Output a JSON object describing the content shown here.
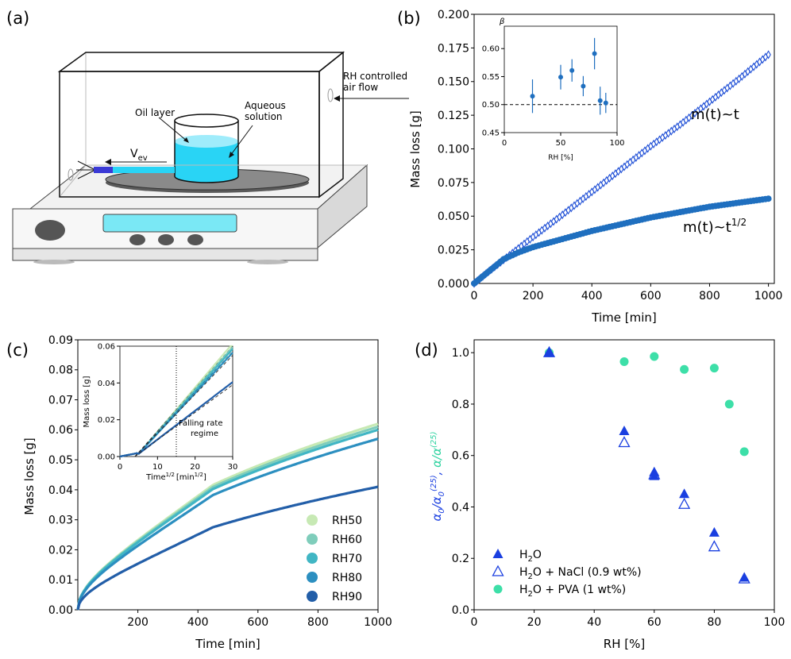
{
  "figure": {
    "panel_labels": [
      "(a)",
      "(b)",
      "(c)",
      "(d)"
    ]
  },
  "schematic": {
    "rh_label_line1": "RH controlled",
    "rh_label_line2": "air flow",
    "oil_label": "Oil layer",
    "aqueous_label_line1": "Aqueous",
    "aqueous_label_line2": "solution",
    "vev_label": "V",
    "vev_sub": "ev",
    "colors": {
      "liquid": "#29d4f5",
      "balance_display": "#7ae8f5",
      "pan": "#808080"
    }
  },
  "chart_data": [
    {
      "panel": "(b)",
      "type": "scatter",
      "xlabel": "Time [min]",
      "ylabel": "Mass loss [g]",
      "xlim": [
        0,
        1020
      ],
      "ylim": [
        0,
        0.2
      ],
      "xticks": [
        "0",
        "200",
        "400",
        "600",
        "800",
        "1000"
      ],
      "yticks": [
        "0.000",
        "0.025",
        "0.050",
        "0.075",
        "0.100",
        "0.125",
        "0.150",
        "0.175",
        "0.200"
      ],
      "annotations": [
        "m(t)~t",
        "m(t)~t"
      ],
      "annotation_sup": "1/2",
      "series": [
        {
          "marker": "open-diamond",
          "color": "#1f4fd6",
          "x": [
            0,
            50,
            100,
            200,
            300,
            400,
            500,
            600,
            700,
            800,
            900,
            1000
          ],
          "y": [
            0,
            0.009,
            0.0175,
            0.0345,
            0.051,
            0.068,
            0.085,
            0.102,
            0.118,
            0.135,
            0.152,
            0.17
          ]
        },
        {
          "marker": "filled-circle",
          "color": "#1f6fbf",
          "x": [
            0,
            50,
            100,
            150,
            200,
            300,
            400,
            500,
            600,
            700,
            800,
            900,
            1000
          ],
          "y": [
            0,
            0.009,
            0.018,
            0.023,
            0.027,
            0.033,
            0.039,
            0.044,
            0.049,
            0.053,
            0.057,
            0.06,
            0.063
          ]
        }
      ],
      "inset": {
        "type": "scatter",
        "title": "β",
        "xlabel": "RH [%]",
        "xlim": [
          0,
          100
        ],
        "ylim": [
          0.45,
          0.64
        ],
        "xticks": [
          "0",
          "50",
          "100"
        ],
        "yticks": [
          "0.45",
          "0.50",
          "0.55",
          "0.60"
        ],
        "reference_y": 0.5,
        "color": "#1f6fbf",
        "x": [
          25,
          50,
          60,
          70,
          80,
          85,
          90
        ],
        "y": [
          0.515,
          0.549,
          0.561,
          0.533,
          0.591,
          0.507,
          0.503
        ],
        "err": [
          0.03,
          0.022,
          0.02,
          0.018,
          0.028,
          0.025,
          0.018
        ]
      }
    },
    {
      "panel": "(c)",
      "type": "line",
      "xlabel": "Time [min]",
      "ylabel": "Mass loss [g]",
      "xlim": [
        0,
        1000
      ],
      "ylim": [
        0,
        0.09
      ],
      "xticks": [
        "200",
        "400",
        "600",
        "800",
        "1000"
      ],
      "yticks": [
        "0.00",
        "0.01",
        "0.02",
        "0.03",
        "0.04",
        "0.05",
        "0.06",
        "0.07",
        "0.08",
        "0.09"
      ],
      "legend_position": "lower right",
      "series": [
        {
          "name": "RH50",
          "color": "#c7e9b4",
          "final": 0.062
        },
        {
          "name": "RH60",
          "color": "#7fcdbb",
          "final": 0.061
        },
        {
          "name": "RH70",
          "color": "#41b6c4",
          "final": 0.06
        },
        {
          "name": "RH80",
          "color": "#2c8fc0",
          "final": 0.057
        },
        {
          "name": "RH90",
          "color": "#225ea8",
          "final": 0.041
        }
      ],
      "inset": {
        "type": "line",
        "xlabel": "Time",
        "xlabel_sup": "1/2",
        "xlabel_unit": "[min",
        "xlabel_unit_sup": "1/2",
        "xlabel_unit_close": "]",
        "ylabel": "Mass loss [g]",
        "xlim": [
          0,
          30
        ],
        "ylim": [
          0,
          0.06
        ],
        "xticks": [
          "0",
          "10",
          "20",
          "30"
        ],
        "yticks": [
          "0.00",
          "0.02",
          "0.04",
          "0.06"
        ],
        "vline_x": 15,
        "annotation_line1": "Falling rate",
        "annotation_line2": "regime",
        "lines": [
          {
            "color": "#c7e9b4",
            "end_y": 0.06
          },
          {
            "color": "#7fcdbb",
            "end_y": 0.058
          },
          {
            "color": "#41b6c4",
            "end_y": 0.057
          },
          {
            "color": "#2c8fc0",
            "end_y": 0.055
          },
          {
            "color": "#225ea8",
            "end_y": 0.039
          }
        ]
      }
    },
    {
      "panel": "(d)",
      "type": "scatter",
      "xlabel": "RH [%]",
      "ylabel_parts": [
        "α",
        "0",
        "/α",
        "0",
        "(25)",
        ", ",
        "α/α",
        "(25)"
      ],
      "ylabel_colors": {
        "first": "#1a3fe0",
        "second": "#2ed3a0"
      },
      "xlim": [
        0,
        100
      ],
      "ylim": [
        0,
        1.05
      ],
      "xticks": [
        "0",
        "20",
        "40",
        "60",
        "80",
        "100"
      ],
      "yticks": [
        "0.0",
        "0.2",
        "0.4",
        "0.6",
        "0.8",
        "1.0"
      ],
      "legend_position": "lower left",
      "series": [
        {
          "name": "H2O",
          "label_main": "H",
          "label_sub": "2",
          "label_rest": "O",
          "marker": "filled-triangle",
          "color": "#1a3fe0",
          "x": [
            25,
            50,
            60,
            60,
            70,
            80,
            90
          ],
          "y": [
            1.0,
            0.695,
            0.535,
            0.52,
            0.45,
            0.3,
            0.125
          ]
        },
        {
          "name": "H2O + NaCl (0.9 wt%)",
          "label_main": "H",
          "label_sub": "2",
          "label_rest": "O + NaCl (0.9 wt%)",
          "marker": "open-triangle",
          "color": "#1a3fe0",
          "x": [
            25,
            50,
            60,
            70,
            80,
            90
          ],
          "y": [
            1.0,
            0.65,
            0.525,
            0.41,
            0.245,
            0.12
          ]
        },
        {
          "name": "H2O + PVA (1 wt%)",
          "label_main": "H",
          "label_sub": "2",
          "label_rest": "O + PVA (1 wt%)",
          "marker": "filled-circle",
          "color": "#3ddfa8",
          "x": [
            25,
            50,
            60,
            70,
            80,
            85,
            90
          ],
          "y": [
            1.0,
            0.965,
            0.985,
            0.935,
            0.94,
            0.8,
            0.615
          ]
        }
      ]
    }
  ]
}
